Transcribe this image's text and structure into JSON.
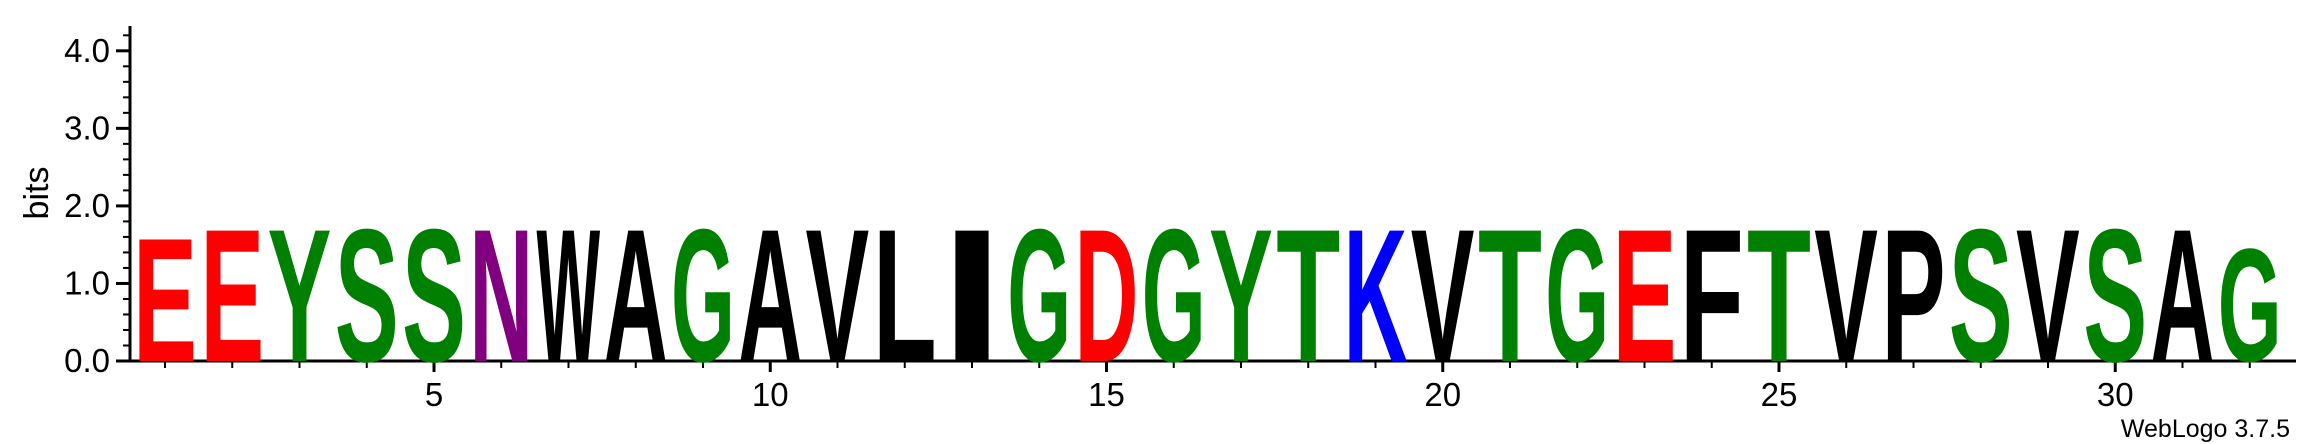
{
  "chart_data": {
    "type": "sequence-logo",
    "ylabel": "bits",
    "ylim": [
      0,
      4.32
    ],
    "y_ticks": [
      "0.0",
      "1.0",
      "2.0",
      "3.0",
      "4.0"
    ],
    "y_tick_values": [
      0,
      1,
      2,
      3,
      4
    ],
    "x_ticks": [
      "5",
      "10",
      "15",
      "20",
      "25",
      "30"
    ],
    "x_tick_positions": [
      5,
      10,
      15,
      20,
      25,
      30
    ],
    "credit": "WebLogo 3.7.5",
    "colors": {
      "E": "#ff0000",
      "D": "#ff0000",
      "Y": "#008000",
      "S": "#008000",
      "G": "#008000",
      "T": "#008000",
      "N": "#800080",
      "K": "#0000ff",
      "W": "#000000",
      "A": "#000000",
      "V": "#000000",
      "L": "#000000",
      "I": "#000000",
      "F": "#000000",
      "P": "#000000"
    },
    "positions": [
      {
        "pos": 1,
        "letter": "E",
        "bits": 1.64
      },
      {
        "pos": 2,
        "letter": "E",
        "bits": 1.76
      },
      {
        "pos": 3,
        "letter": "Y",
        "bits": 1.76
      },
      {
        "pos": 4,
        "letter": "S",
        "bits": 1.76
      },
      {
        "pos": 5,
        "letter": "S",
        "bits": 1.76
      },
      {
        "pos": 6,
        "letter": "N",
        "bits": 1.76
      },
      {
        "pos": 7,
        "letter": "W",
        "bits": 1.76
      },
      {
        "pos": 8,
        "letter": "A",
        "bits": 1.76
      },
      {
        "pos": 9,
        "letter": "G",
        "bits": 1.76
      },
      {
        "pos": 10,
        "letter": "A",
        "bits": 1.76
      },
      {
        "pos": 11,
        "letter": "V",
        "bits": 1.76
      },
      {
        "pos": 12,
        "letter": "L",
        "bits": 1.76
      },
      {
        "pos": 13,
        "letter": "I",
        "bits": 1.76
      },
      {
        "pos": 14,
        "letter": "G",
        "bits": 1.76
      },
      {
        "pos": 15,
        "letter": "D",
        "bits": 1.76
      },
      {
        "pos": 16,
        "letter": "G",
        "bits": 1.76
      },
      {
        "pos": 17,
        "letter": "Y",
        "bits": 1.76
      },
      {
        "pos": 18,
        "letter": "T",
        "bits": 1.76
      },
      {
        "pos": 19,
        "letter": "K",
        "bits": 1.76
      },
      {
        "pos": 20,
        "letter": "V",
        "bits": 1.76
      },
      {
        "pos": 21,
        "letter": "T",
        "bits": 1.76
      },
      {
        "pos": 22,
        "letter": "G",
        "bits": 1.76
      },
      {
        "pos": 23,
        "letter": "E",
        "bits": 1.76
      },
      {
        "pos": 24,
        "letter": "F",
        "bits": 1.76
      },
      {
        "pos": 25,
        "letter": "T",
        "bits": 1.76
      },
      {
        "pos": 26,
        "letter": "V",
        "bits": 1.76
      },
      {
        "pos": 27,
        "letter": "P",
        "bits": 1.76
      },
      {
        "pos": 28,
        "letter": "S",
        "bits": 1.76
      },
      {
        "pos": 29,
        "letter": "V",
        "bits": 1.76
      },
      {
        "pos": 30,
        "letter": "S",
        "bits": 1.76
      },
      {
        "pos": 31,
        "letter": "A",
        "bits": 1.76
      },
      {
        "pos": 32,
        "letter": "G",
        "bits": 1.5
      }
    ]
  }
}
